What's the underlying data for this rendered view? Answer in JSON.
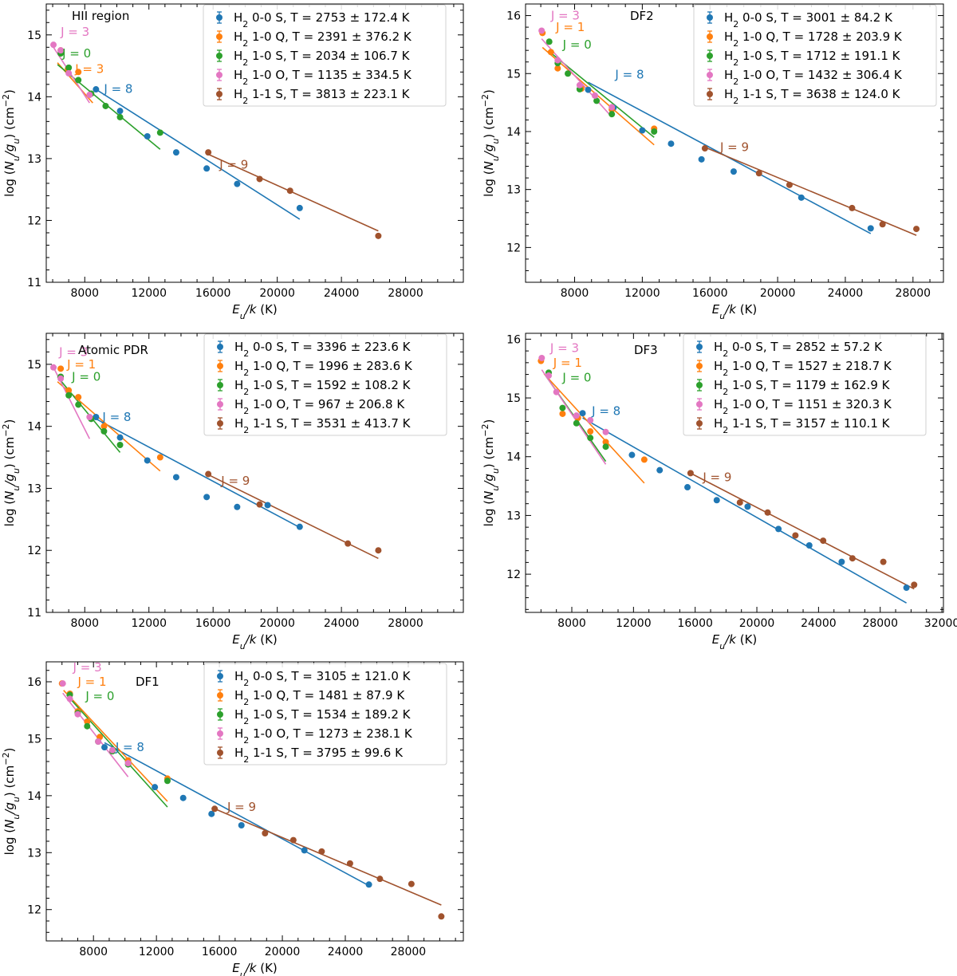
{
  "figure": {
    "xlabel": "E_u/k (K)",
    "ylabel": "log (N_u/g_u) (cm^-2)",
    "series_names": [
      "H2 0-0 S",
      "H2 1-0 Q",
      "H2 1-0 S",
      "H2 1-0 O",
      "H2 1-1 S"
    ],
    "colors": {
      "H2 0-0 S": "#1f77b4",
      "H2 1-0 Q": "#ff7f0e",
      "H2 1-0 S": "#2ca02c",
      "H2 1-0 O": "#e377c2",
      "H2 1-1 S": "#a0522d"
    }
  },
  "chart_data": [
    {
      "type": "scatter",
      "title": "HII region",
      "xlabel": "E_u/k (K)",
      "ylabel": "log (N_u/g_u) (cm^-2)",
      "xlim": [
        5600,
        31600
      ],
      "ylim": [
        11,
        15.5
      ],
      "xticks": [
        8000,
        12000,
        16000,
        20000,
        24000,
        28000
      ],
      "yticks": [
        11,
        12,
        13,
        14,
        15
      ],
      "series": [
        {
          "name": "H2 0-0 S",
          "legend": "T = 2753 ± 172.4 K",
          "x": [
            8700,
            10200,
            11900,
            13700,
            15600,
            17500,
            21400
          ],
          "y": [
            14.12,
            13.77,
            13.36,
            13.1,
            12.84,
            12.59,
            12.2
          ],
          "fit": [
            [
              8700,
              14.12
            ],
            [
              21400,
              12.02
            ]
          ]
        },
        {
          "name": "H2 1-0 Q",
          "legend": "T = 2391 ± 376.2 K",
          "x": [
            6500,
            6950,
            7600
          ],
          "y": [
            14.75,
            14.45,
            14.4
          ],
          "fit": [
            [
              6300,
              14.55
            ],
            [
              8500,
              13.9
            ]
          ]
        },
        {
          "name": "H2 1-0 S",
          "legend": "T = 2034 ± 106.7 K",
          "x": [
            6500,
            7000,
            7600,
            8400,
            9300,
            10200,
            12700
          ],
          "y": [
            14.7,
            14.47,
            14.27,
            14.05,
            13.85,
            13.67,
            13.42
          ],
          "fit": [
            [
              6300,
              14.52
            ],
            [
              12700,
              13.15
            ]
          ]
        },
        {
          "name": "H2 1-0 O",
          "legend": "T = 1135 ± 334.5 K",
          "x": [
            6050,
            6500,
            7000,
            8300
          ],
          "y": [
            14.84,
            14.75,
            14.38,
            14.03
          ],
          "fit": [
            [
              6050,
              14.8
            ],
            [
              8300,
              13.9
            ]
          ]
        },
        {
          "name": "H2 1-1 S",
          "legend": "T = 3813 ± 223.1 K",
          "x": [
            15700,
            18900,
            20800,
            26300
          ],
          "y": [
            13.1,
            12.67,
            12.48,
            11.75
          ],
          "fit": [
            [
              15700,
              13.07
            ],
            [
              26300,
              11.83
            ]
          ]
        }
      ],
      "annotations": [
        {
          "text": "J = 3",
          "color": "#e377c2",
          "x": 6500,
          "y": 15.05
        },
        {
          "text": "J = 0",
          "color": "#2ca02c",
          "x": 6600,
          "y": 14.7
        },
        {
          "text": "J = 3",
          "color": "#ff7f0e",
          "x": 7400,
          "y": 14.45
        },
        {
          "text": "J = 8",
          "color": "#1f77b4",
          "x": 9200,
          "y": 14.13
        },
        {
          "text": "J = 9",
          "color": "#a0522d",
          "x": 16400,
          "y": 12.9
        }
      ]
    },
    {
      "type": "scatter",
      "title": "DF2",
      "xlabel": "E_u/k (K)",
      "ylabel": "log (N_u/g_u) (cm^-2)",
      "xlim": [
        5100,
        29800
      ],
      "ylim": [
        11.4,
        16.2
      ],
      "xticks": [
        8000,
        12000,
        16000,
        20000,
        24000,
        28000
      ],
      "yticks": [
        12,
        13,
        14,
        15,
        16
      ],
      "series": [
        {
          "name": "H2 0-0 S",
          "legend": "T = 3001 ± 84.2 K",
          "x": [
            8800,
            10300,
            12000,
            13700,
            15500,
            17400,
            21400,
            25500
          ],
          "y": [
            14.72,
            14.41,
            14.02,
            13.79,
            13.52,
            13.31,
            12.86,
            12.33
          ],
          "fit": [
            [
              8800,
              14.85
            ],
            [
              25500,
              12.24
            ]
          ]
        },
        {
          "name": "H2 1-0 Q",
          "legend": "T = 1728 ± 203.9 K",
          "x": [
            6100,
            6600,
            7000,
            8400,
            10200,
            12700
          ],
          "y": [
            15.7,
            15.37,
            15.09,
            14.74,
            14.38,
            14.05
          ],
          "fit": [
            [
              6100,
              15.45
            ],
            [
              12700,
              13.77
            ]
          ]
        },
        {
          "name": "H2 1-0 S",
          "legend": "T = 1712 ± 191.1 K",
          "x": [
            6500,
            7000,
            7600,
            8300,
            9300,
            10200,
            12700
          ],
          "y": [
            15.55,
            15.18,
            15.0,
            14.73,
            14.53,
            14.3,
            14.0
          ],
          "fit": [
            [
              6500,
              15.38
            ],
            [
              12700,
              13.9
            ]
          ]
        },
        {
          "name": "H2 1-0 O",
          "legend": "T = 1432 ± 306.4 K",
          "x": [
            6050,
            7000,
            8300,
            9200,
            10200
          ],
          "y": [
            15.74,
            15.23,
            14.8,
            14.62,
            14.42
          ],
          "fit": [
            [
              6050,
              15.6
            ],
            [
              10200,
              14.25
            ]
          ]
        },
        {
          "name": "H2 1-1 S",
          "legend": "T = 3638 ± 124.0 K",
          "x": [
            15700,
            18900,
            20700,
            24400,
            26200,
            28200
          ],
          "y": [
            13.71,
            13.28,
            13.08,
            12.68,
            12.4,
            12.32
          ],
          "fit": [
            [
              15700,
              13.73
            ],
            [
              28200,
              12.21
            ]
          ]
        }
      ],
      "annotations": [
        {
          "text": "J = 3",
          "color": "#e377c2",
          "x": 6600,
          "y": 16.0
        },
        {
          "text": "J = 1",
          "color": "#ff7f0e",
          "x": 6900,
          "y": 15.8
        },
        {
          "text": "J = 0",
          "color": "#2ca02c",
          "x": 7300,
          "y": 15.5
        },
        {
          "text": "J = 8",
          "color": "#1f77b4",
          "x": 10400,
          "y": 14.98
        },
        {
          "text": "J = 9",
          "color": "#a0522d",
          "x": 16600,
          "y": 13.73
        }
      ]
    },
    {
      "type": "scatter",
      "title": "Atomic PDR",
      "xlabel": "E_u/k (K)",
      "ylabel": "log (N_u/g_u) (cm^-2)",
      "xlim": [
        5600,
        31600
      ],
      "ylim": [
        11,
        15.5
      ],
      "xticks": [
        8000,
        12000,
        16000,
        20000,
        24000,
        28000
      ],
      "yticks": [
        11,
        12,
        13,
        14,
        15
      ],
      "series": [
        {
          "name": "H2 0-0 S",
          "legend": "T = 3396 ± 223.6 K",
          "x": [
            8700,
            10200,
            11900,
            13700,
            15600,
            17500,
            19400,
            21400
          ],
          "y": [
            14.15,
            13.82,
            13.45,
            13.18,
            12.86,
            12.7,
            12.73,
            12.38
          ],
          "fit": [
            [
              8700,
              14.12
            ],
            [
              21400,
              12.37
            ]
          ]
        },
        {
          "name": "H2 1-0 Q",
          "legend": "T = 1996 ± 283.6 K",
          "x": [
            6500,
            7000,
            7600,
            9200,
            12700
          ],
          "y": [
            14.93,
            14.58,
            14.47,
            14.0,
            13.5
          ],
          "fit": [
            [
              6300,
              14.72
            ],
            [
              12700,
              13.28
            ]
          ]
        },
        {
          "name": "H2 1-0 S",
          "legend": "T = 1592 ± 108.2 K",
          "x": [
            6500,
            7000,
            7600,
            8400,
            9200,
            10200
          ],
          "y": [
            14.8,
            14.5,
            14.35,
            14.12,
            13.92,
            13.7
          ],
          "fit": [
            [
              6300,
              14.8
            ],
            [
              10200,
              13.58
            ]
          ]
        },
        {
          "name": "H2 1-0 O",
          "legend": "T = 967 ± 206.8 K",
          "x": [
            6050,
            6500,
            8300
          ],
          "y": [
            14.95,
            14.77,
            14.15
          ],
          "fit": [
            [
              6050,
              14.95
            ],
            [
              8300,
              13.8
            ]
          ]
        },
        {
          "name": "H2 1-1 S",
          "legend": "T = 3531 ± 413.7 K",
          "x": [
            15700,
            18900,
            24400,
            26300
          ],
          "y": [
            13.23,
            12.74,
            12.11,
            12.0
          ],
          "fit": [
            [
              15700,
              13.22
            ],
            [
              26300,
              11.87
            ]
          ]
        }
      ],
      "annotations": [
        {
          "text": "J = 3",
          "color": "#e377c2",
          "x": 6400,
          "y": 15.2
        },
        {
          "text": "J = 1",
          "color": "#ff7f0e",
          "x": 6900,
          "y": 15.0
        },
        {
          "text": "J = 0",
          "color": "#2ca02c",
          "x": 7200,
          "y": 14.8
        },
        {
          "text": "J = 8",
          "color": "#1f77b4",
          "x": 9100,
          "y": 14.15
        },
        {
          "text": "J = 9",
          "color": "#a0522d",
          "x": 16500,
          "y": 13.12
        }
      ]
    },
    {
      "type": "scatter",
      "title": "DF3",
      "xlabel": "E_u/k (K)",
      "ylabel": "log (N_u/g_u) (cm^-2)",
      "xlim": [
        5000,
        32100
      ],
      "ylim": [
        11.35,
        16.1
      ],
      "xticks": [
        8000,
        12000,
        16000,
        20000,
        24000,
        28000,
        32000
      ],
      "yticks": [
        12,
        13,
        14,
        15,
        16
      ],
      "series": [
        {
          "name": "H2 0-0 S",
          "legend": "T = 2852 ± 57.2 K",
          "x": [
            8700,
            11900,
            13700,
            15500,
            17400,
            19400,
            21400,
            23400,
            25500,
            29700
          ],
          "y": [
            14.74,
            14.03,
            13.77,
            13.48,
            13.26,
            13.15,
            12.77,
            12.49,
            12.21,
            11.77
          ],
          "fit": [
            [
              8700,
              14.66
            ],
            [
              29700,
              11.51
            ]
          ]
        },
        {
          "name": "H2 1-0 Q",
          "legend": "T = 1527 ± 218.7 K",
          "x": [
            6000,
            7400,
            8400,
            9200,
            10200,
            12700
          ],
          "y": [
            15.63,
            14.73,
            14.66,
            14.43,
            14.25,
            13.95
          ],
          "fit": [
            [
              6200,
              15.41
            ],
            [
              12700,
              13.55
            ]
          ]
        },
        {
          "name": "H2 1-0 S",
          "legend": "T = 1179 ± 162.9 K",
          "x": [
            6500,
            7400,
            8300,
            9200,
            10200
          ],
          "y": [
            15.43,
            14.83,
            14.57,
            14.32,
            14.17
          ],
          "fit": [
            [
              6300,
              15.38
            ],
            [
              10200,
              13.92
            ]
          ]
        },
        {
          "name": "H2 1-0 O",
          "legend": "T = 1151 ± 320.3 K",
          "x": [
            6050,
            6500,
            7000,
            8300,
            9200,
            10200
          ],
          "y": [
            15.68,
            15.38,
            15.1,
            14.7,
            14.62,
            14.42
          ],
          "fit": [
            [
              6050,
              15.48
            ],
            [
              10200,
              13.87
            ]
          ]
        },
        {
          "name": "H2 1-1 S",
          "legend": "T = 3157 ± 110.1 K",
          "x": [
            15700,
            18900,
            20700,
            22500,
            24300,
            26200,
            28200,
            30200
          ],
          "y": [
            13.72,
            13.22,
            13.05,
            12.66,
            12.57,
            12.27,
            12.21,
            11.82
          ],
          "fit": [
            [
              15700,
              13.72
            ],
            [
              30200,
              11.75
            ]
          ]
        }
      ],
      "annotations": [
        {
          "text": "J = 3",
          "color": "#e377c2",
          "x": 6600,
          "y": 15.85
        },
        {
          "text": "J = 1",
          "color": "#ff7f0e",
          "x": 6800,
          "y": 15.6
        },
        {
          "text": "J = 0",
          "color": "#2ca02c",
          "x": 7400,
          "y": 15.35
        },
        {
          "text": "J = 8",
          "color": "#1f77b4",
          "x": 9300,
          "y": 14.78
        },
        {
          "text": "J = 9",
          "color": "#a0522d",
          "x": 16500,
          "y": 13.65
        }
      ]
    },
    {
      "type": "scatter",
      "title": "DF1",
      "xlabel": "E_u/k (K)",
      "ylabel": "log (N_u/g_u) (cm^-2)",
      "xlim": [
        5000,
        31500
      ],
      "ylim": [
        11.45,
        16.35
      ],
      "xticks": [
        8000,
        12000,
        16000,
        20000,
        24000,
        28000
      ],
      "yticks": [
        12,
        13,
        14,
        15,
        16
      ],
      "series": [
        {
          "name": "H2 0-0 S",
          "legend": "T = 3105 ± 121.0 K",
          "x": [
            8700,
            10200,
            11900,
            13700,
            15500,
            17400,
            21400,
            25500
          ],
          "y": [
            14.85,
            14.6,
            14.15,
            13.96,
            13.68,
            13.48,
            13.04,
            12.44
          ],
          "fit": [
            [
              8700,
              14.93
            ],
            [
              25500,
              12.42
            ]
          ]
        },
        {
          "name": "H2 1-0 Q",
          "legend": "T = 1481 ± 87.9 K",
          "x": [
            6000,
            6500,
            7000,
            7600,
            8400,
            10200,
            12700
          ],
          "y": [
            15.97,
            15.79,
            15.48,
            15.3,
            15.03,
            14.62,
            14.3
          ],
          "fit": [
            [
              6100,
              15.85
            ],
            [
              12700,
              13.9
            ]
          ]
        },
        {
          "name": "H2 1-0 S",
          "legend": "T = 1534 ± 189.2 K",
          "x": [
            6500,
            7000,
            7600,
            8300,
            9200,
            10200,
            12700
          ],
          "y": [
            15.77,
            15.45,
            15.22,
            14.95,
            14.78,
            14.55,
            14.26
          ],
          "fit": [
            [
              6300,
              15.77
            ],
            [
              12700,
              13.8
            ]
          ]
        },
        {
          "name": "H2 1-0 O",
          "legend": "T = 1273 ± 238.1 K",
          "x": [
            6050,
            6500,
            7000,
            8300,
            9200,
            10200
          ],
          "y": [
            15.97,
            15.7,
            15.43,
            14.95,
            14.8,
            14.57
          ],
          "fit": [
            [
              6050,
              15.8
            ],
            [
              10200,
              14.33
            ]
          ]
        },
        {
          "name": "H2 1-1 S",
          "legend": "T = 3795 ± 99.6 K",
          "x": [
            15700,
            18900,
            20700,
            22500,
            24300,
            26200,
            28200,
            30100
          ],
          "y": [
            13.77,
            13.34,
            13.22,
            13.02,
            12.81,
            12.54,
            12.45,
            11.88
          ],
          "fit": [
            [
              15700,
              13.77
            ],
            [
              30100,
              12.08
            ]
          ]
        }
      ],
      "annotations": [
        {
          "text": "J = 3",
          "color": "#e377c2",
          "x": 6700,
          "y": 16.25
        },
        {
          "text": "J = 1",
          "color": "#ff7f0e",
          "x": 7000,
          "y": 16.0
        },
        {
          "text": "J = 0",
          "color": "#2ca02c",
          "x": 7500,
          "y": 15.75
        },
        {
          "text": "J = 8",
          "color": "#1f77b4",
          "x": 9400,
          "y": 14.85
        },
        {
          "text": "J = 9",
          "color": "#a0522d",
          "x": 16500,
          "y": 13.8
        }
      ]
    }
  ]
}
